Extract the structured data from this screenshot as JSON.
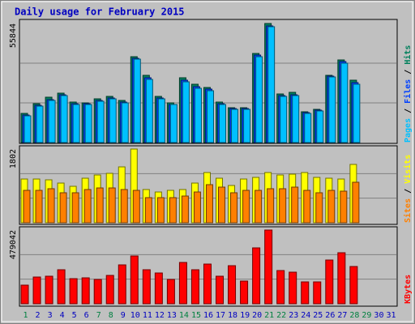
{
  "chart_data": [
    {
      "type": "bar",
      "title": "Daily usage for February 2015",
      "series": [
        {
          "name": "Hits",
          "color": "#00805c",
          "values": [
            13676,
            18235,
            21274,
            23173,
            18994,
            18615,
            20514,
            21654,
            19754,
            40268,
            31531,
            21654,
            18615,
            30391,
            27352,
            25833,
            18994,
            16335,
            16335,
            41788,
            55844,
            22794,
            23553,
            14436,
            15576,
            31531,
            38749,
            29251,
            null,
            null,
            null
          ]
        },
        {
          "name": "Files",
          "color": "#0040ff",
          "values": [
            12916,
            17475,
            20134,
            22413,
            18235,
            18235,
            19754,
            20894,
            18994,
            39509,
            30391,
            20894,
            17855,
            29251,
            26212,
            25073,
            18235,
            15955,
            15955,
            41028,
            54704,
            22034,
            22413,
            14056,
            15196,
            31151,
            37989,
            28112,
            null,
            null,
            null
          ]
        },
        {
          "name": "Pages",
          "color": "#00c0ff",
          "values": [
            12537,
            17095,
            19754,
            22034,
            17855,
            17855,
            19374,
            20514,
            18615,
            39129,
            29631,
            20514,
            17855,
            28492,
            25453,
            24313,
            17855,
            15576,
            15576,
            40268,
            54325,
            21654,
            22034,
            13676,
            14816,
            30771,
            37229,
            27352,
            null,
            null,
            null
          ]
        }
      ],
      "legend_separator": " / ",
      "ylim": [
        0,
        55844
      ],
      "yticks": [
        55844
      ]
    },
    {
      "type": "bar",
      "series": [
        {
          "name": "Visits",
          "color": "#ffff00",
          "values": [
            1069,
            1069,
            1049,
            970,
            891,
            1089,
            1168,
            1208,
            1366,
            1802,
            812,
            752,
            792,
            812,
            970,
            1228,
            1089,
            911,
            1069,
            1109,
            1228,
            1168,
            1188,
            1228,
            1109,
            1089,
            1069,
            1426,
            null,
            null,
            null
          ]
        },
        {
          "name": "Sites",
          "color": "#ff8000",
          "values": [
            792,
            792,
            832,
            733,
            733,
            812,
            851,
            851,
            812,
            792,
            614,
            614,
            614,
            653,
            752,
            931,
            871,
            733,
            792,
            792,
            832,
            832,
            871,
            792,
            733,
            792,
            772,
            990,
            null,
            null,
            null
          ]
        }
      ],
      "legend_separator": " / ",
      "ylim": [
        0,
        1802
      ],
      "yticks": [
        1802
      ]
    },
    {
      "type": "bar",
      "categories": [
        "1",
        "2",
        "3",
        "4",
        "5",
        "6",
        "7",
        "8",
        "9",
        "10",
        "11",
        "12",
        "13",
        "14",
        "15",
        "16",
        "17",
        "18",
        "19",
        "20",
        "21",
        "22",
        "23",
        "24",
        "25",
        "26",
        "27",
        "28",
        "29",
        "30",
        "31"
      ],
      "category_colors": [
        "#008040",
        "#0000c0",
        "#0000c0",
        "#0000c0",
        "#0000c0",
        "#0000c0",
        "#008040",
        "#008040",
        "#0000c0",
        "#0000c0",
        "#0000c0",
        "#0000c0",
        "#0000c0",
        "#008040",
        "#008040",
        "#0000c0",
        "#0000c0",
        "#0000c0",
        "#0000c0",
        "#0000c0",
        "#008040",
        "#008040",
        "#0000c0",
        "#0000c0",
        "#0000c0",
        "#0000c0",
        "#0000c0",
        "#008040",
        "#008040",
        "#0000c0",
        "#0000c0"
      ],
      "series": [
        {
          "name": "KBytes",
          "color": "#ff0000",
          "values": [
            121072,
            173712,
            178976,
            221088,
            163184,
            168448,
            157920,
            184240,
            252672,
            310576,
            221088,
            200032,
            157920,
            268464,
            221088,
            257936,
            178976,
            247408,
            147392,
            363216,
            479042,
            215824,
            205296,
            142128,
            142128,
            284256,
            331632,
            242144,
            null,
            null,
            null
          ]
        }
      ],
      "ylim": [
        0,
        479042
      ],
      "yticks": [
        479042
      ]
    }
  ]
}
